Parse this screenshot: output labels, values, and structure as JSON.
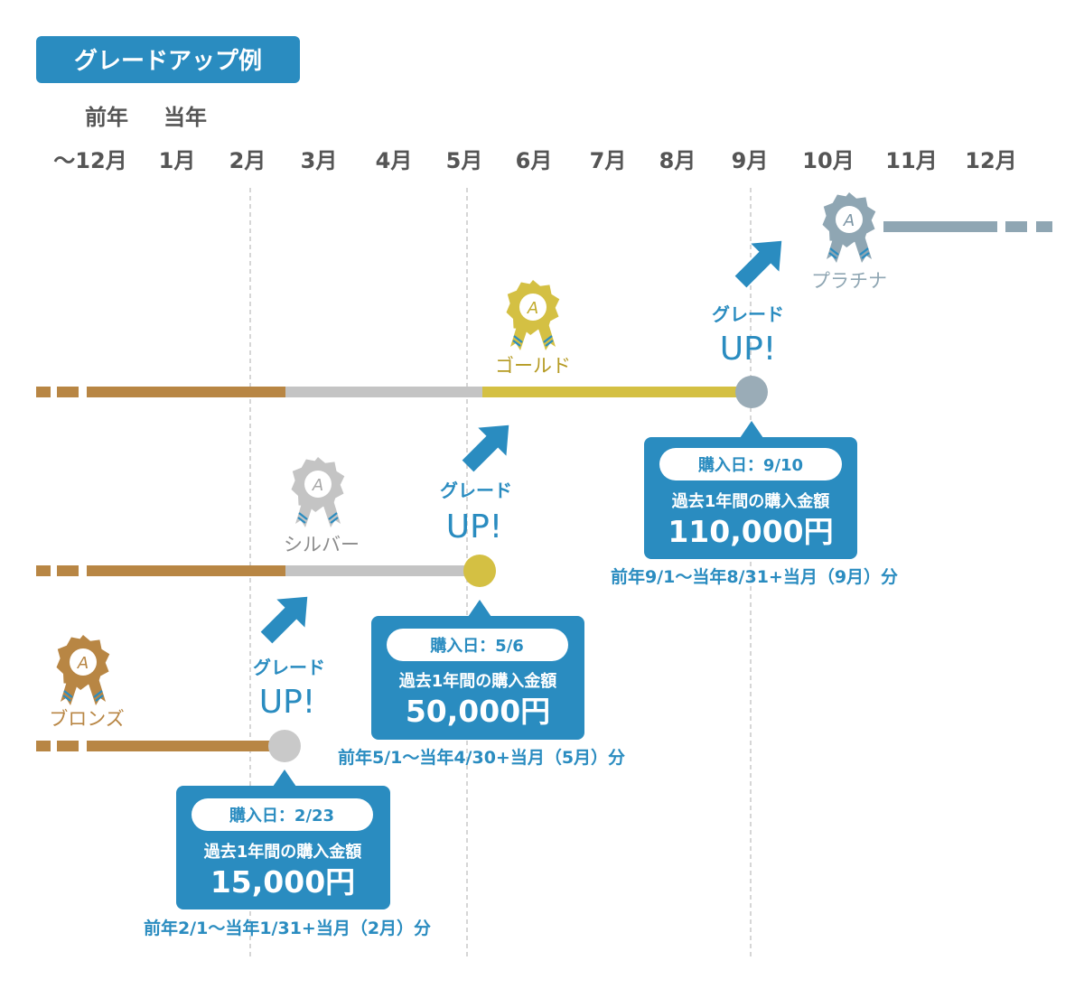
{
  "title": "グレードアップ例",
  "colors": {
    "accent": "#2a8cc0",
    "bronze": "#b88644",
    "silver": "#c4c4c4",
    "gold": "#d4c043",
    "platinum": "#8fa6b3",
    "node_grey": "#c9c9c9",
    "node_gold": "#d4c043",
    "node_platinum": "#9aacb7",
    "text_grey": "#555555"
  },
  "years": {
    "previous": "前年",
    "current": "当年"
  },
  "months": [
    "～12月",
    "1月",
    "2月",
    "3月",
    "4月",
    "5月",
    "6月",
    "7月",
    "8月",
    "9月",
    "10月",
    "11月",
    "12月"
  ],
  "tiers": {
    "bronze": {
      "name": "ブロンズ",
      "badge_letter": "A"
    },
    "silver": {
      "name": "シルバー",
      "badge_letter": "A"
    },
    "gold": {
      "name": "ゴールド",
      "badge_letter": "A"
    },
    "platinum": {
      "name": "プラチナ",
      "badge_letter": "A"
    }
  },
  "grade_up": {
    "label": "グレード",
    "up": "UP!"
  },
  "upgrades": [
    {
      "date_label": "購入日：2/23",
      "amount_label": "過去1年間の購入金額",
      "amount": "15,000円",
      "period": "前年2/1～当年1/31+当月（2月）分"
    },
    {
      "date_label": "購入日：5/6",
      "amount_label": "過去1年間の購入金額",
      "amount": "50,000円",
      "period": "前年5/1～当年4/30+当月（5月）分"
    },
    {
      "date_label": "購入日：9/10",
      "amount_label": "過去1年間の購入金額",
      "amount": "110,000円",
      "period": "前年9/1～当年8/31+当月（9月）分"
    }
  ]
}
